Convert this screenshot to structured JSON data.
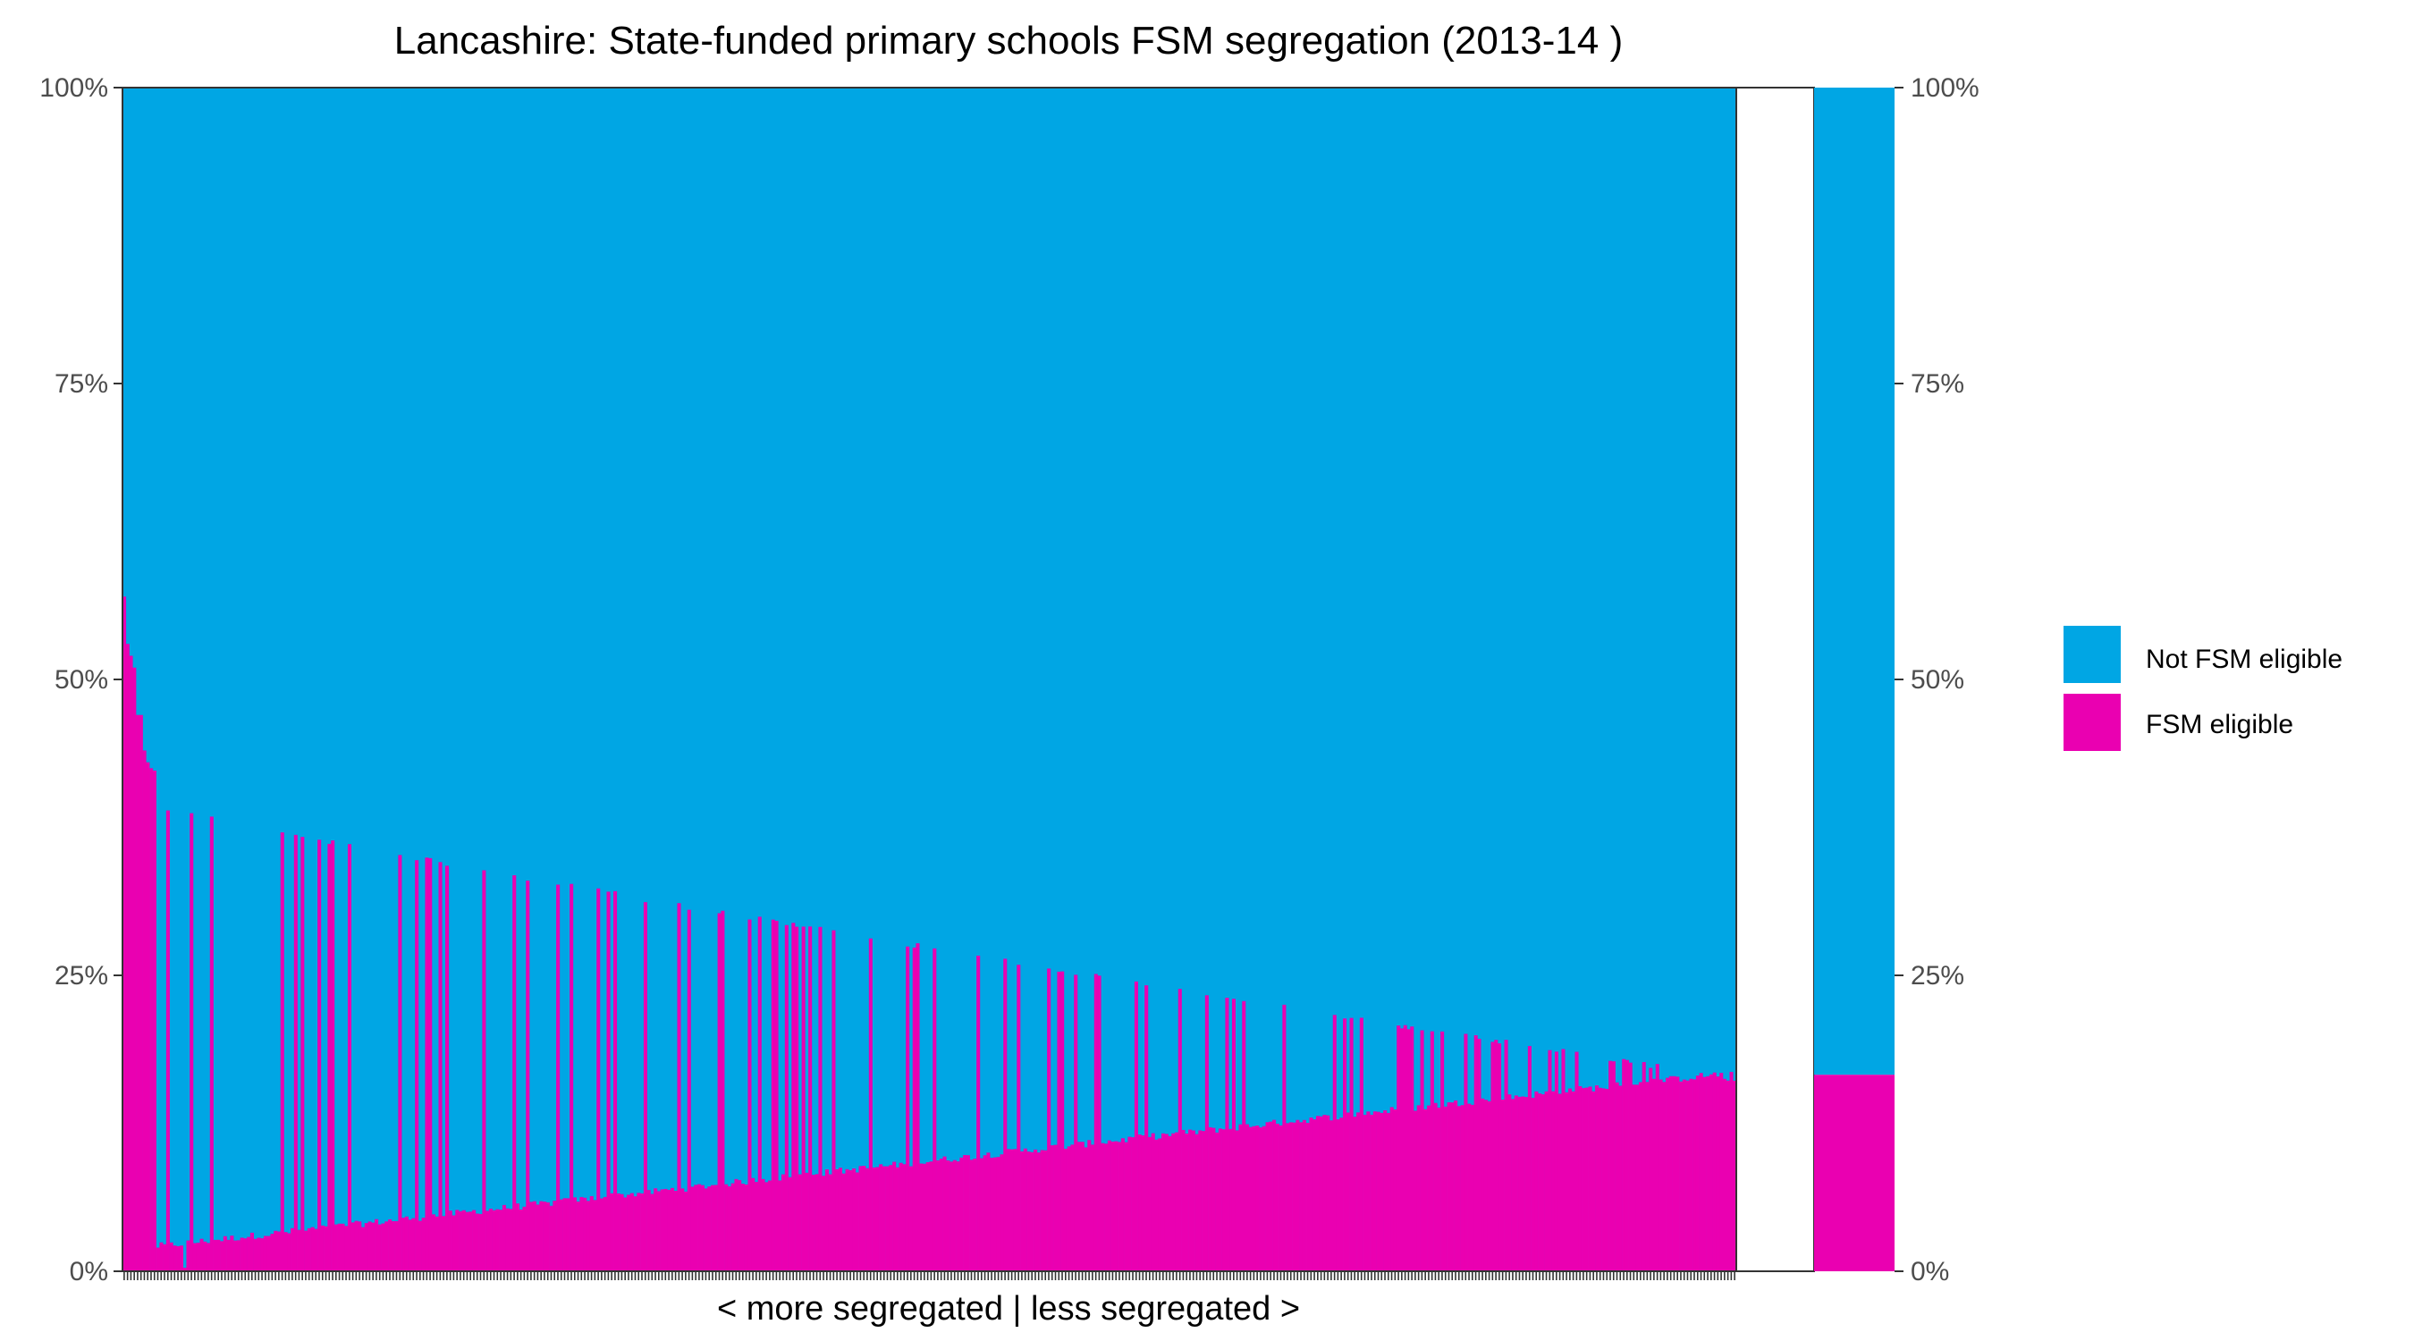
{
  "chart_data": {
    "type": "bar",
    "stacked": true,
    "normalized": true,
    "title": "Lancashire: State-funded primary schools FSM segregation (2013-14 )",
    "xlabel": "< more segregated | less segregated >",
    "ylabel": "",
    "ylim": [
      0,
      100
    ],
    "y_ticks": [
      "0%",
      "25%",
      "50%",
      "75%",
      "100%"
    ],
    "y_tick_values": [
      0,
      25,
      50,
      75,
      100
    ],
    "grid": false,
    "legend_position": "right",
    "colors": {
      "not_fsm": "#00a6e4",
      "fsm": "#ea00b1"
    },
    "series": [
      {
        "key": "not_fsm",
        "name": "Not FSM eligible"
      },
      {
        "key": "fsm",
        "name": "FSM eligible"
      }
    ],
    "num_schools": 480,
    "overall_fsm_pct": 16.6,
    "school_upper_envelope_start": [
      57,
      53,
      52,
      51,
      47,
      47,
      44,
      43,
      42.5,
      42.3
    ],
    "school_upper_envelope_end": 16.5,
    "school_lower_envelope_start": 1.5,
    "school_lower_envelope_end": 16.5,
    "summary_bar": {
      "fsm_pct": 16.6,
      "not_fsm_pct": 83.4
    }
  }
}
